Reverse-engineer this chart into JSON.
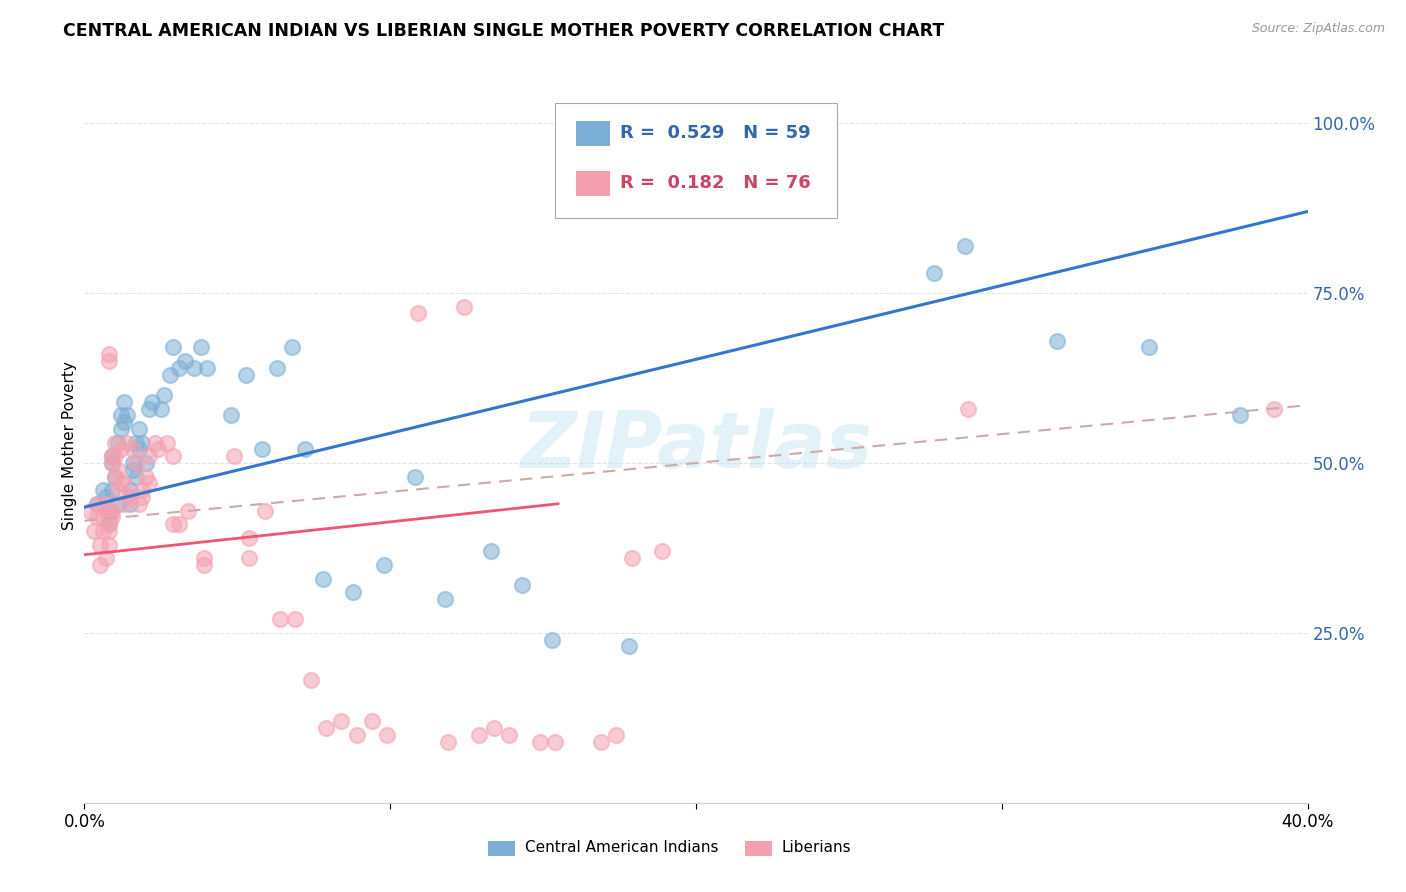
{
  "title": "CENTRAL AMERICAN INDIAN VS LIBERIAN SINGLE MOTHER POVERTY CORRELATION CHART",
  "source": "Source: ZipAtlas.com",
  "ylabel": "Single Mother Poverty",
  "yaxis_labels": [
    "25.0%",
    "50.0%",
    "75.0%",
    "100.0%"
  ],
  "legend_blue_r": "0.529",
  "legend_blue_n": "59",
  "legend_pink_r": "0.182",
  "legend_pink_n": "76",
  "legend_label_blue": "Central American Indians",
  "legend_label_pink": "Liberians",
  "watermark": "ZIPatlas",
  "blue_color": "#7BAFD4",
  "pink_color": "#F4A0B0",
  "blue_scatter": [
    [
      0.004,
      0.44
    ],
    [
      0.006,
      0.46
    ],
    [
      0.007,
      0.45
    ],
    [
      0.008,
      0.43
    ],
    [
      0.008,
      0.41
    ],
    [
      0.009,
      0.46
    ],
    [
      0.009,
      0.51
    ],
    [
      0.009,
      0.5
    ],
    [
      0.01,
      0.48
    ],
    [
      0.011,
      0.44
    ],
    [
      0.011,
      0.53
    ],
    [
      0.012,
      0.57
    ],
    [
      0.012,
      0.55
    ],
    [
      0.013,
      0.59
    ],
    [
      0.013,
      0.56
    ],
    [
      0.014,
      0.57
    ],
    [
      0.015,
      0.46
    ],
    [
      0.015,
      0.44
    ],
    [
      0.016,
      0.49
    ],
    [
      0.016,
      0.5
    ],
    [
      0.017,
      0.48
    ],
    [
      0.017,
      0.53
    ],
    [
      0.018,
      0.55
    ],
    [
      0.018,
      0.52
    ],
    [
      0.019,
      0.53
    ],
    [
      0.02,
      0.5
    ],
    [
      0.021,
      0.58
    ],
    [
      0.022,
      0.59
    ],
    [
      0.025,
      0.58
    ],
    [
      0.026,
      0.6
    ],
    [
      0.028,
      0.63
    ],
    [
      0.029,
      0.67
    ],
    [
      0.031,
      0.64
    ],
    [
      0.033,
      0.65
    ],
    [
      0.036,
      0.64
    ],
    [
      0.038,
      0.67
    ],
    [
      0.04,
      0.64
    ],
    [
      0.048,
      0.57
    ],
    [
      0.053,
      0.63
    ],
    [
      0.058,
      0.52
    ],
    [
      0.063,
      0.64
    ],
    [
      0.068,
      0.67
    ],
    [
      0.072,
      0.52
    ],
    [
      0.078,
      0.33
    ],
    [
      0.088,
      0.31
    ],
    [
      0.098,
      0.35
    ],
    [
      0.108,
      0.48
    ],
    [
      0.118,
      0.3
    ],
    [
      0.133,
      0.37
    ],
    [
      0.143,
      0.32
    ],
    [
      0.153,
      0.24
    ],
    [
      0.178,
      0.23
    ],
    [
      0.228,
      1.0
    ],
    [
      0.238,
      1.0
    ],
    [
      0.278,
      0.78
    ],
    [
      0.288,
      0.82
    ],
    [
      0.318,
      0.68
    ],
    [
      0.348,
      0.67
    ],
    [
      0.378,
      0.57
    ]
  ],
  "pink_scatter": [
    [
      0.002,
      0.43
    ],
    [
      0.003,
      0.4
    ],
    [
      0.004,
      0.44
    ],
    [
      0.004,
      0.42
    ],
    [
      0.005,
      0.38
    ],
    [
      0.005,
      0.35
    ],
    [
      0.006,
      0.42
    ],
    [
      0.006,
      0.4
    ],
    [
      0.007,
      0.44
    ],
    [
      0.007,
      0.43
    ],
    [
      0.007,
      0.36
    ],
    [
      0.008,
      0.42
    ],
    [
      0.008,
      0.41
    ],
    [
      0.008,
      0.4
    ],
    [
      0.008,
      0.38
    ],
    [
      0.008,
      0.66
    ],
    [
      0.008,
      0.65
    ],
    [
      0.009,
      0.43
    ],
    [
      0.009,
      0.42
    ],
    [
      0.009,
      0.51
    ],
    [
      0.009,
      0.5
    ],
    [
      0.01,
      0.48
    ],
    [
      0.01,
      0.51
    ],
    [
      0.01,
      0.53
    ],
    [
      0.011,
      0.49
    ],
    [
      0.011,
      0.46
    ],
    [
      0.012,
      0.47
    ],
    [
      0.012,
      0.52
    ],
    [
      0.013,
      0.44
    ],
    [
      0.013,
      0.47
    ],
    [
      0.014,
      0.53
    ],
    [
      0.015,
      0.45
    ],
    [
      0.015,
      0.45
    ],
    [
      0.016,
      0.52
    ],
    [
      0.017,
      0.5
    ],
    [
      0.018,
      0.44
    ],
    [
      0.019,
      0.45
    ],
    [
      0.019,
      0.46
    ],
    [
      0.02,
      0.48
    ],
    [
      0.021,
      0.47
    ],
    [
      0.021,
      0.51
    ],
    [
      0.023,
      0.53
    ],
    [
      0.024,
      0.52
    ],
    [
      0.027,
      0.53
    ],
    [
      0.029,
      0.51
    ],
    [
      0.029,
      0.41
    ],
    [
      0.031,
      0.41
    ],
    [
      0.034,
      0.43
    ],
    [
      0.039,
      0.36
    ],
    [
      0.039,
      0.35
    ],
    [
      0.049,
      0.51
    ],
    [
      0.054,
      0.39
    ],
    [
      0.054,
      0.36
    ],
    [
      0.059,
      0.43
    ],
    [
      0.064,
      0.27
    ],
    [
      0.069,
      0.27
    ],
    [
      0.074,
      0.18
    ],
    [
      0.079,
      0.11
    ],
    [
      0.084,
      0.12
    ],
    [
      0.089,
      0.1
    ],
    [
      0.094,
      0.12
    ],
    [
      0.099,
      0.1
    ],
    [
      0.109,
      0.72
    ],
    [
      0.119,
      0.09
    ],
    [
      0.124,
      0.73
    ],
    [
      0.129,
      0.1
    ],
    [
      0.134,
      0.11
    ],
    [
      0.139,
      0.1
    ],
    [
      0.149,
      0.09
    ],
    [
      0.154,
      0.09
    ],
    [
      0.169,
      0.09
    ],
    [
      0.174,
      0.1
    ],
    [
      0.179,
      0.36
    ],
    [
      0.189,
      0.37
    ],
    [
      0.289,
      0.58
    ],
    [
      0.389,
      0.58
    ]
  ],
  "blue_line_x": [
    0.0,
    0.4
  ],
  "blue_line_y": [
    0.435,
    0.87
  ],
  "pink_solid_line_x": [
    0.0,
    0.155
  ],
  "pink_solid_line_y": [
    0.365,
    0.44
  ],
  "pink_dashed_line_x": [
    0.0,
    0.4
  ],
  "pink_dashed_line_y": [
    0.415,
    0.585
  ],
  "xlim": [
    0.0,
    0.4
  ],
  "ylim": [
    0.0,
    1.05
  ],
  "grid_color": "#DDDDDD",
  "title_fontsize": 12.5,
  "blue_label_color": "#3366AA",
  "pink_label_color": "#CC4466"
}
